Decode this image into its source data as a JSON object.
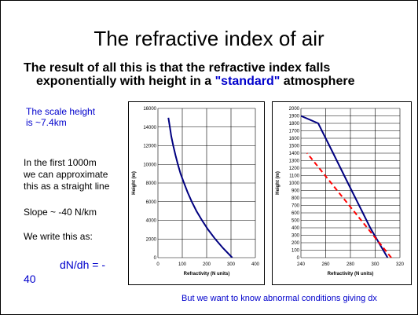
{
  "slide": {
    "title": "The refractive index of air",
    "subtitle_part1": "The result of all this is that the refractive index falls",
    "subtitle_part2": "exponentially with height in a ",
    "subtitle_highlight": "\"standard\"",
    "subtitle_part3": " atmosphere",
    "scale_line1": "The scale height",
    "scale_line2": "is ~7.4km",
    "approx_line1": "In the first 1000m",
    "approx_line2": "we can approximate",
    "approx_line3": "this as a straight line",
    "slope_text": "Slope ~ -40 N/km",
    "write_text": "We write this as:",
    "equation_line1": "dN/dh = -",
    "equation_line2": "40",
    "footer": "But we want to know abnormal conditions giving dx"
  },
  "colors": {
    "text_blue": "#0000cc",
    "curve_navy": "#000080",
    "line_red": "#ff0000"
  },
  "chart_data": [
    {
      "type": "line",
      "title": "",
      "xlabel": "Refractivity (N units)",
      "ylabel": "Height (m)",
      "xlim": [
        0,
        400
      ],
      "ylim": [
        0,
        16000
      ],
      "xticks": [
        "0",
        "100",
        "200",
        "300",
        "400"
      ],
      "yticks": [
        "0",
        "2000",
        "4000",
        "6000",
        "8000",
        "10000",
        "12000",
        "14000",
        "16000"
      ],
      "grid": true,
      "series": [
        {
          "x": [
            305,
            268,
            235,
            206,
            181,
            158,
            139,
            122,
            107,
            93,
            82,
            72,
            63,
            55,
            49,
            43
          ],
          "y": [
            0,
            1000,
            2000,
            3000,
            4000,
            5000,
            6000,
            7000,
            8000,
            9000,
            10000,
            11000,
            12000,
            13000,
            14000,
            15000
          ]
        }
      ]
    },
    {
      "type": "line",
      "title": "",
      "xlabel": "Refractivity (N units)",
      "ylabel": "Height (m)",
      "xlim": [
        240,
        320
      ],
      "ylim": [
        0,
        2000
      ],
      "xticks": [
        "240",
        "260",
        "280",
        "300",
        "320"
      ],
      "yticks": [
        "0",
        "100",
        "200",
        "300",
        "400",
        "500",
        "600",
        "700",
        "800",
        "900",
        "1000",
        "1100",
        "1200",
        "1300",
        "1400",
        "1500",
        "1600",
        "1700",
        "1800",
        "1900",
        "2000"
      ],
      "grid": true,
      "series": [
        {
          "style": "solid",
          "x": [
            310,
            303,
            296,
            290,
            284,
            278,
            272,
            266,
            260,
            254,
            240
          ],
          "y": [
            0,
            200,
            400,
            600,
            800,
            1000,
            1200,
            1400,
            1600,
            1800,
            1900
          ]
        },
        {
          "style": "dashed",
          "x": [
            313,
            245
          ],
          "y": [
            0,
            1400
          ]
        }
      ]
    }
  ]
}
